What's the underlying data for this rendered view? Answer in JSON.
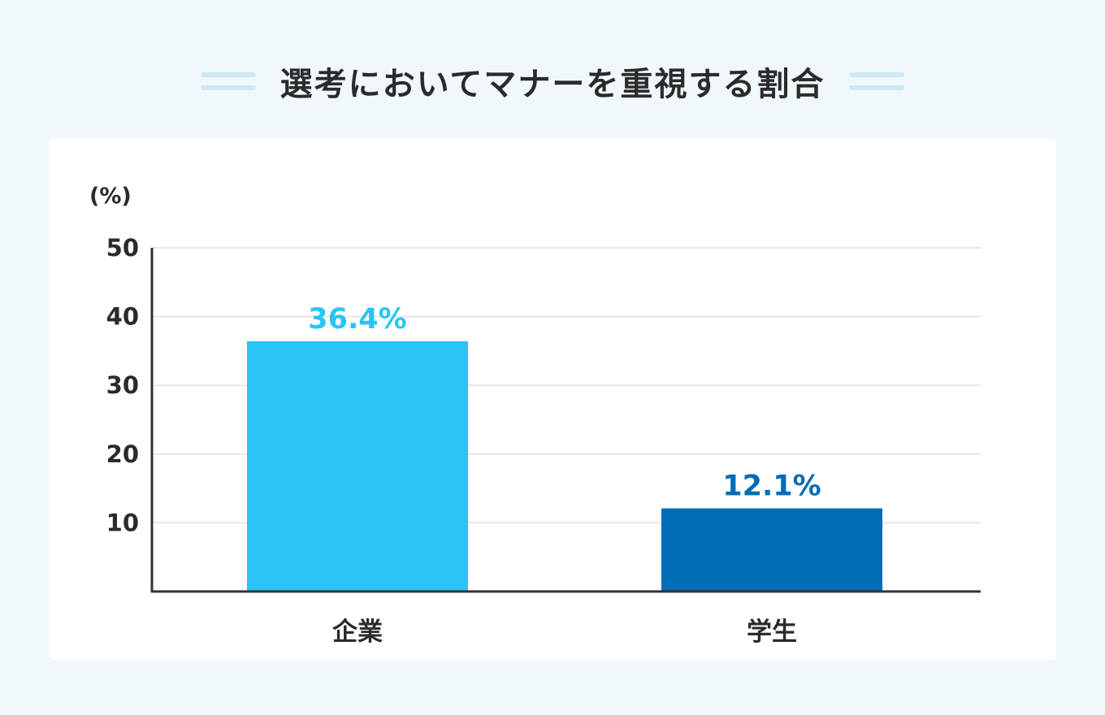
{
  "header": {
    "title": "選考においてマナーを重視する割合"
  },
  "chart_data": {
    "type": "bar",
    "title": "選考においてマナーを重視する割合",
    "ylabel": "(%)",
    "xlabel": "",
    "ylim": [
      0,
      50
    ],
    "yticks": [
      10,
      20,
      30,
      40,
      50
    ],
    "categories": [
      "企業",
      "学生"
    ],
    "values": [
      36.4,
      12.1
    ],
    "data_labels": [
      "36.4%",
      "12.1%"
    ],
    "colors": [
      "#29c4f5",
      "#006db6"
    ],
    "grid": true,
    "legend": "none"
  }
}
